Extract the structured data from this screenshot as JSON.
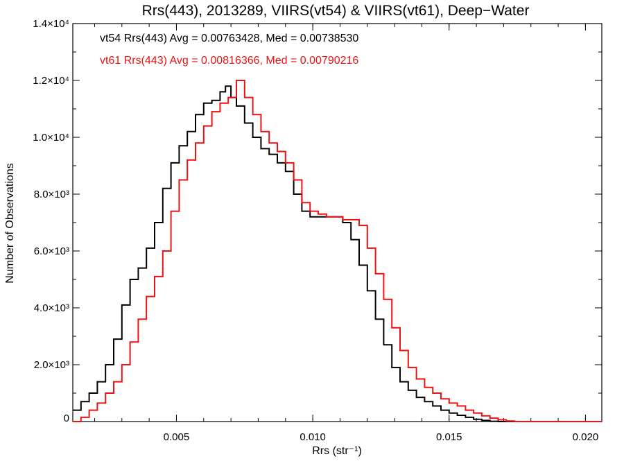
{
  "chart_data": {
    "type": "line",
    "title": "Rrs(443), 2013289, VIIRS(vt54) & VIIRS(vt61), Deep−Water",
    "xlabel": "Rrs (str⁻¹)",
    "ylabel": "Number of Observations",
    "xlim": [
      0.0012,
      0.0206
    ],
    "ylim": [
      0,
      14000
    ],
    "grid": false,
    "step": true,
    "x_ticks": [
      {
        "value": 0.005,
        "label": "0.005"
      },
      {
        "value": 0.01,
        "label": "0.010"
      },
      {
        "value": 0.015,
        "label": "0.015"
      },
      {
        "value": 0.02,
        "label": "0.020"
      }
    ],
    "y_ticks": [
      {
        "value": 0,
        "label": "0"
      },
      {
        "value": 2000,
        "label": "2.0×10³"
      },
      {
        "value": 4000,
        "label": "4.0×10³"
      },
      {
        "value": 6000,
        "label": "6.0×10³"
      },
      {
        "value": 8000,
        "label": "8.0×10³"
      },
      {
        "value": 10000,
        "label": "1.0×10⁴"
      },
      {
        "value": 12000,
        "label": "1.2×10⁴"
      },
      {
        "value": 14000,
        "label": "1.4×10⁴"
      }
    ],
    "annotations": [
      {
        "text": "vt54 Rrs(443) Avg = 0.00763428, Med = 0.00738530",
        "color": "#000000"
      },
      {
        "text": "vt61 Rrs(443) Avg = 0.00816366, Med = 0.00790216",
        "color": "#ee1111"
      }
    ],
    "series": [
      {
        "color": "#000000",
        "points": [
          [
            0.0012,
            400
          ],
          [
            0.0015,
            700
          ],
          [
            0.0018,
            1000
          ],
          [
            0.0021,
            1400
          ],
          [
            0.0024,
            2000
          ],
          [
            0.0027,
            2900
          ],
          [
            0.003,
            4100
          ],
          [
            0.0033,
            5000
          ],
          [
            0.0036,
            5400
          ],
          [
            0.0039,
            6100
          ],
          [
            0.0042,
            7000
          ],
          [
            0.0045,
            8200
          ],
          [
            0.0048,
            9100
          ],
          [
            0.0051,
            9700
          ],
          [
            0.0054,
            10200
          ],
          [
            0.0057,
            10800
          ],
          [
            0.006,
            11200
          ],
          [
            0.0063,
            11300
          ],
          [
            0.0066,
            11600
          ],
          [
            0.0068,
            11800
          ],
          [
            0.007,
            11400
          ],
          [
            0.0072,
            11100
          ],
          [
            0.0075,
            10500
          ],
          [
            0.0078,
            10000
          ],
          [
            0.0081,
            9600
          ],
          [
            0.0084,
            9400
          ],
          [
            0.0087,
            9100
          ],
          [
            0.009,
            8800
          ],
          [
            0.0093,
            8000
          ],
          [
            0.0096,
            7400
          ],
          [
            0.0099,
            7200
          ],
          [
            0.0102,
            7200
          ],
          [
            0.0105,
            7200
          ],
          [
            0.0108,
            7200
          ],
          [
            0.0111,
            7000
          ],
          [
            0.0114,
            6400
          ],
          [
            0.0117,
            5500
          ],
          [
            0.012,
            4600
          ],
          [
            0.0123,
            3600
          ],
          [
            0.0126,
            2700
          ],
          [
            0.0129,
            1900
          ],
          [
            0.0132,
            1400
          ],
          [
            0.0135,
            1100
          ],
          [
            0.0138,
            850
          ],
          [
            0.0141,
            700
          ],
          [
            0.0144,
            550
          ],
          [
            0.0147,
            400
          ],
          [
            0.015,
            300
          ],
          [
            0.0153,
            220
          ],
          [
            0.0156,
            150
          ],
          [
            0.0159,
            80
          ],
          [
            0.0162,
            40
          ],
          [
            0.0165,
            10
          ],
          [
            0.0168,
            0
          ],
          [
            0.0206,
            0
          ]
        ]
      },
      {
        "color": "#ee1111",
        "points": [
          [
            0.0012,
            0
          ],
          [
            0.0015,
            150
          ],
          [
            0.0018,
            400
          ],
          [
            0.0021,
            650
          ],
          [
            0.0024,
            1000
          ],
          [
            0.0027,
            1400
          ],
          [
            0.003,
            2000
          ],
          [
            0.0033,
            2800
          ],
          [
            0.0036,
            3600
          ],
          [
            0.0039,
            4400
          ],
          [
            0.0042,
            5100
          ],
          [
            0.0045,
            6000
          ],
          [
            0.0048,
            7400
          ],
          [
            0.0051,
            8500
          ],
          [
            0.0054,
            9200
          ],
          [
            0.0057,
            9800
          ],
          [
            0.006,
            10400
          ],
          [
            0.0063,
            10900
          ],
          [
            0.0066,
            11200
          ],
          [
            0.0069,
            11400
          ],
          [
            0.0072,
            12000
          ],
          [
            0.0075,
            11400
          ],
          [
            0.0078,
            10800
          ],
          [
            0.0081,
            10200
          ],
          [
            0.0084,
            9800
          ],
          [
            0.0087,
            9500
          ],
          [
            0.009,
            9100
          ],
          [
            0.0093,
            8500
          ],
          [
            0.0096,
            7700
          ],
          [
            0.0099,
            7400
          ],
          [
            0.0102,
            7300
          ],
          [
            0.0105,
            7200
          ],
          [
            0.0108,
            7200
          ],
          [
            0.0111,
            7100
          ],
          [
            0.0114,
            7100
          ],
          [
            0.0117,
            6900
          ],
          [
            0.012,
            6100
          ],
          [
            0.0123,
            5200
          ],
          [
            0.0126,
            4300
          ],
          [
            0.0129,
            3300
          ],
          [
            0.0132,
            2500
          ],
          [
            0.0135,
            1900
          ],
          [
            0.0138,
            1500
          ],
          [
            0.0141,
            1200
          ],
          [
            0.0144,
            1000
          ],
          [
            0.0147,
            800
          ],
          [
            0.015,
            650
          ],
          [
            0.0153,
            550
          ],
          [
            0.0156,
            400
          ],
          [
            0.0159,
            300
          ],
          [
            0.0162,
            200
          ],
          [
            0.0165,
            120
          ],
          [
            0.0168,
            60
          ],
          [
            0.0171,
            20
          ],
          [
            0.0174,
            0
          ],
          [
            0.0206,
            0
          ]
        ]
      }
    ]
  }
}
